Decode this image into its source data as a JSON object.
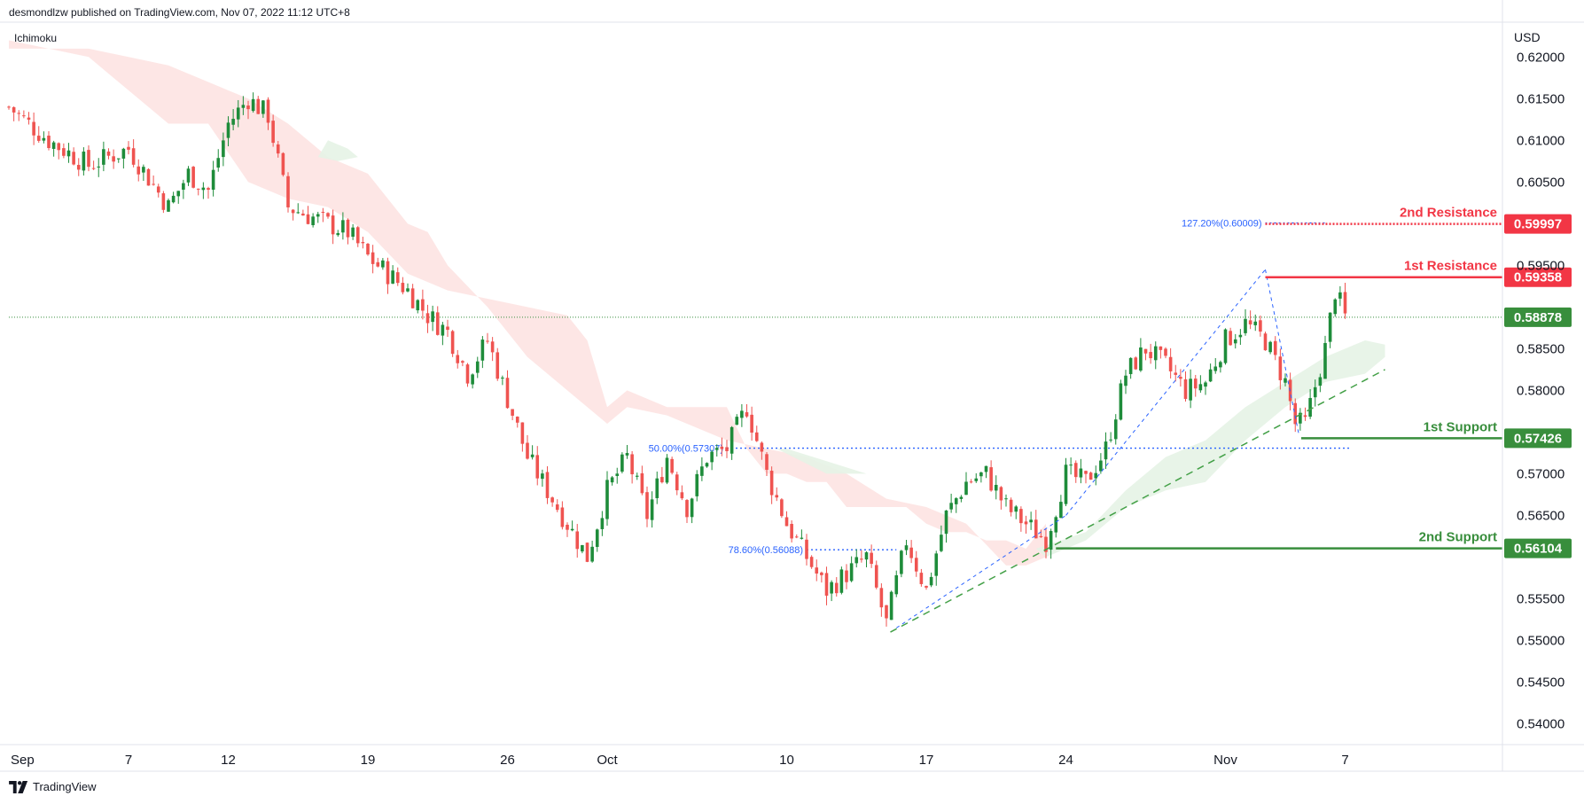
{
  "header": {
    "text": "desmondlzw published on TradingView.com, Nov 07, 2022 11:12 UTC+8",
    "indicator": "Ichimoku",
    "currency": "USD"
  },
  "footer": {
    "brand": "TradingView"
  },
  "colors": {
    "up": "#26a69a",
    "up_candle": "#1e8c3a",
    "down": "#ef5350",
    "resistance": "#f23645",
    "support": "#388e3c",
    "fib": "#2962ff",
    "cloud_bear": "#fde2e0",
    "cloud_bull": "#e5f3e6",
    "trend": "#43a047",
    "current_price": "#388e3c"
  },
  "chart_data": {
    "type": "candlestick",
    "title": "",
    "ylim": [
      0.5375,
      0.6245
    ],
    "y_ticks": [
      "0.62000",
      "0.61500",
      "0.61000",
      "0.60500",
      "0.60000",
      "0.59500",
      "0.59000",
      "0.58500",
      "0.58000",
      "0.57500",
      "0.57000",
      "0.56500",
      "0.56000",
      "0.55500",
      "0.55000",
      "0.54500",
      "0.54000"
    ],
    "x_ticks": [
      {
        "label": "Sep",
        "day": 0
      },
      {
        "label": "7",
        "day": 6
      },
      {
        "label": "12",
        "day": 11
      },
      {
        "label": "19",
        "day": 18
      },
      {
        "label": "26",
        "day": 25
      },
      {
        "label": "Oct",
        "day": 30
      },
      {
        "label": "10",
        "day": 39
      },
      {
        "label": "17",
        "day": 46
      },
      {
        "label": "24",
        "day": 53
      },
      {
        "label": "Nov",
        "day": 61
      },
      {
        "label": "7",
        "day": 67
      }
    ],
    "close_path": [
      [
        0,
        0.614
      ],
      [
        2,
        0.61
      ],
      [
        4,
        0.607
      ],
      [
        6,
        0.609
      ],
      [
        8,
        0.602
      ],
      [
        9,
        0.606
      ],
      [
        10,
        0.604
      ],
      [
        11,
        0.612
      ],
      [
        12,
        0.615
      ],
      [
        13,
        0.613
      ],
      [
        14,
        0.602
      ],
      [
        15,
        0.601
      ],
      [
        17,
        0.599
      ],
      [
        18,
        0.596
      ],
      [
        19,
        0.594
      ],
      [
        20,
        0.592
      ],
      [
        21,
        0.589
      ],
      [
        22,
        0.587
      ],
      [
        23,
        0.582
      ],
      [
        24,
        0.586
      ],
      [
        25,
        0.579
      ],
      [
        26,
        0.572
      ],
      [
        27,
        0.568
      ],
      [
        28,
        0.564
      ],
      [
        29,
        0.56
      ],
      [
        30,
        0.568
      ],
      [
        31,
        0.572
      ],
      [
        32,
        0.565
      ],
      [
        33,
        0.572
      ],
      [
        34,
        0.566
      ],
      [
        35,
        0.572
      ],
      [
        36,
        0.573
      ],
      [
        37,
        0.578
      ],
      [
        38,
        0.57
      ],
      [
        39,
        0.564
      ],
      [
        40,
        0.56
      ],
      [
        41,
        0.556
      ],
      [
        42,
        0.558
      ],
      [
        43,
        0.56
      ],
      [
        44,
        0.552
      ],
      [
        45,
        0.562
      ],
      [
        46,
        0.556
      ],
      [
        47,
        0.565
      ],
      [
        48,
        0.569
      ],
      [
        49,
        0.57
      ],
      [
        50,
        0.566
      ],
      [
        51,
        0.564
      ],
      [
        52,
        0.562
      ],
      [
        53,
        0.57
      ],
      [
        54,
        0.569
      ],
      [
        55,
        0.573
      ],
      [
        56,
        0.582
      ],
      [
        57,
        0.585
      ],
      [
        58,
        0.583
      ],
      [
        59,
        0.58
      ],
      [
        60,
        0.581
      ],
      [
        61,
        0.586
      ],
      [
        62,
        0.588
      ],
      [
        63,
        0.586
      ],
      [
        64,
        0.581
      ],
      [
        64.5,
        0.576
      ],
      [
        65,
        0.576
      ],
      [
        66,
        0.585
      ],
      [
        66.5,
        0.592
      ],
      [
        67,
        0.5888
      ]
    ],
    "ichimoku_cloud_bear": [
      [
        [
          0,
          0.622
        ],
        [
          4,
          0.62
        ],
        [
          6,
          0.616
        ],
        [
          8,
          0.612
        ],
        [
          10,
          0.612
        ],
        [
          12,
          0.605
        ],
        [
          14,
          0.603
        ],
        [
          16,
          0.602
        ],
        [
          18,
          0.599
        ],
        [
          20,
          0.594
        ],
        [
          22,
          0.592
        ],
        [
          24,
          0.591
        ],
        [
          26,
          0.59
        ],
        [
          28,
          0.589
        ],
        [
          29,
          0.586
        ],
        [
          30,
          0.578
        ],
        [
          31,
          0.58
        ],
        [
          33,
          0.578
        ],
        [
          35,
          0.578
        ],
        [
          36,
          0.578
        ],
        [
          37,
          0.573
        ],
        [
          38,
          0.57
        ],
        [
          39,
          0.57
        ],
        [
          40,
          0.569
        ],
        [
          41,
          0.569
        ],
        [
          42,
          0.566
        ],
        [
          43,
          0.566
        ],
        [
          44,
          0.566
        ],
        [
          45,
          0.566
        ],
        [
          46,
          0.564
        ],
        [
          47,
          0.563
        ],
        [
          48,
          0.563
        ],
        [
          49,
          0.562
        ],
        [
          50,
          0.562
        ],
        [
          51,
          0.561
        ],
        [
          52,
          0.564
        ],
        [
          52,
          0.56
        ],
        [
          51,
          0.559
        ],
        [
          50,
          0.559
        ],
        [
          48,
          0.564
        ],
        [
          46,
          0.566
        ],
        [
          44,
          0.567
        ],
        [
          42,
          0.57
        ],
        [
          40,
          0.572
        ],
        [
          38,
          0.573
        ],
        [
          36,
          0.574
        ],
        [
          35,
          0.575
        ],
        [
          34,
          0.576
        ],
        [
          33,
          0.577
        ],
        [
          31,
          0.578
        ],
        [
          30,
          0.576
        ],
        [
          28,
          0.58
        ],
        [
          26,
          0.584
        ],
        [
          25,
          0.587
        ],
        [
          24,
          0.59
        ],
        [
          22,
          0.595
        ],
        [
          21,
          0.599
        ],
        [
          20,
          0.6
        ],
        [
          18,
          0.606
        ],
        [
          16,
          0.608
        ],
        [
          14,
          0.612
        ],
        [
          12,
          0.615
        ],
        [
          10,
          0.617
        ],
        [
          8,
          0.619
        ],
        [
          6,
          0.62
        ],
        [
          4,
          0.621
        ],
        [
          0,
          0.621
        ]
      ]
    ],
    "ichimoku_cloud_bull": [
      [
        [
          16,
          0.61
        ],
        [
          17,
          0.609
        ],
        [
          17.5,
          0.608
        ],
        [
          16.5,
          0.6075
        ],
        [
          15.5,
          0.608
        ]
      ],
      [
        [
          38.5,
          0.573
        ],
        [
          41,
          0.57
        ],
        [
          43,
          0.57
        ],
        [
          41,
          0.5715
        ],
        [
          39,
          0.573
        ]
      ],
      [
        [
          51.5,
          0.561
        ],
        [
          54,
          0.563
        ],
        [
          56,
          0.568
        ],
        [
          58,
          0.572
        ],
        [
          60,
          0.574
        ],
        [
          62,
          0.578
        ],
        [
          64,
          0.581
        ],
        [
          66,
          0.584
        ],
        [
          68,
          0.586
        ],
        [
          69,
          0.5855
        ],
        [
          69,
          0.584
        ],
        [
          68,
          0.582
        ],
        [
          66,
          0.581
        ],
        [
          64,
          0.578
        ],
        [
          62,
          0.574
        ],
        [
          60,
          0.569
        ],
        [
          58,
          0.568
        ],
        [
          56,
          0.566
        ],
        [
          54,
          0.562
        ],
        [
          52,
          0.56
        ]
      ]
    ],
    "fibonacci": [
      {
        "label": "127.20%(0.60009)",
        "value": 0.60009
      },
      {
        "label": "50.00%(0.57307)",
        "value": 0.57307
      },
      {
        "label": "78.60%(0.56088)",
        "value": 0.56088
      }
    ],
    "levels": [
      {
        "name": "2nd Resistance",
        "value": 0.59997,
        "value_text": "0.59997",
        "kind": "resistance",
        "dotted": true
      },
      {
        "name": "1st Resistance",
        "value": 0.59358,
        "value_text": "0.59358",
        "kind": "resistance",
        "dotted": false
      },
      {
        "name": "1st Support",
        "value": 0.57426,
        "value_text": "0.57426",
        "kind": "support",
        "dotted": false
      },
      {
        "name": "2nd Support",
        "value": 0.56104,
        "value_text": "0.56104",
        "kind": "support",
        "dotted": false
      }
    ],
    "current_price": {
      "value": 0.58878,
      "value_text": "0.58878"
    },
    "trendline": [
      [
        44.2,
        0.551
      ],
      [
        69,
        0.5825
      ]
    ],
    "zigzag": [
      [
        44.5,
        0.5515
      ],
      [
        53,
        0.565
      ],
      [
        63,
        0.5945
      ],
      [
        64.7,
        0.5745
      ]
    ]
  }
}
